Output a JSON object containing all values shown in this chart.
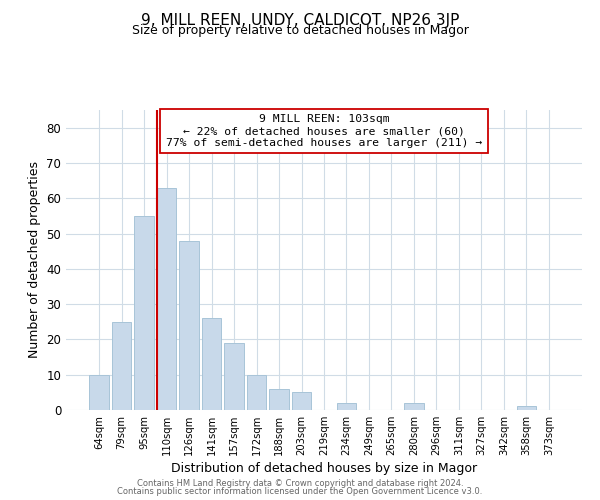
{
  "title": "9, MILL REEN, UNDY, CALDICOT, NP26 3JP",
  "subtitle": "Size of property relative to detached houses in Magor",
  "xlabel": "Distribution of detached houses by size in Magor",
  "ylabel": "Number of detached properties",
  "bar_labels": [
    "64sqm",
    "79sqm",
    "95sqm",
    "110sqm",
    "126sqm",
    "141sqm",
    "157sqm",
    "172sqm",
    "188sqm",
    "203sqm",
    "219sqm",
    "234sqm",
    "249sqm",
    "265sqm",
    "280sqm",
    "296sqm",
    "311sqm",
    "327sqm",
    "342sqm",
    "358sqm",
    "373sqm"
  ],
  "bar_values": [
    10,
    25,
    55,
    63,
    48,
    26,
    19,
    10,
    6,
    5,
    0,
    2,
    0,
    0,
    2,
    0,
    0,
    0,
    0,
    1,
    0
  ],
  "bar_color": "#c8d9ea",
  "bar_edge_color": "#a8c4d8",
  "vline_color": "#cc0000",
  "annotation_line1": "9 MILL REEN: 103sqm",
  "annotation_line2": "← 22% of detached houses are smaller (60)",
  "annotation_line3": "77% of semi-detached houses are larger (211) →",
  "annotation_box_color": "#ffffff",
  "annotation_box_edge": "#cc0000",
  "ylim": [
    0,
    85
  ],
  "yticks": [
    0,
    10,
    20,
    30,
    40,
    50,
    60,
    70,
    80
  ],
  "footer1": "Contains HM Land Registry data © Crown copyright and database right 2024.",
  "footer2": "Contains public sector information licensed under the Open Government Licence v3.0.",
  "background_color": "#ffffff",
  "grid_color": "#d0dce6"
}
